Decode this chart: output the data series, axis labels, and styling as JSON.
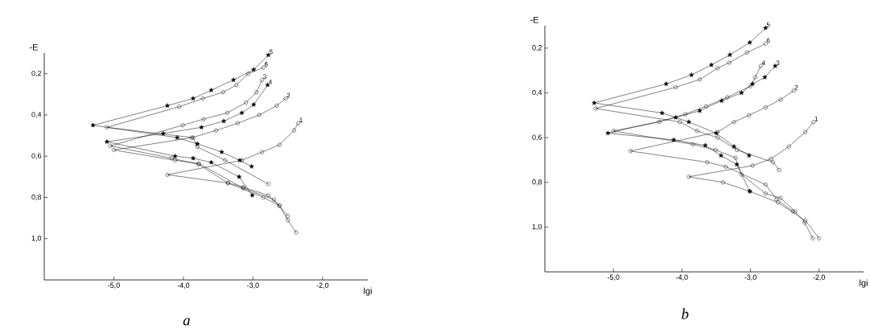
{
  "chart_data": [
    {
      "type": "line",
      "xlabel": "lgi",
      "ylabel": "-E",
      "annotations": [
        "a"
      ],
      "xlim": [
        -6.0,
        -1.35
      ],
      "ylim": [
        1.2,
        0.1
      ],
      "xticks": [
        {
          "value": -5,
          "label": "-5,0"
        },
        {
          "value": -4,
          "label": "-4,0"
        },
        {
          "value": -3,
          "label": "-3,0"
        },
        {
          "value": -2,
          "label": "-2,0"
        }
      ],
      "yticks": [
        {
          "value": 0.2,
          "label": "0,2"
        },
        {
          "value": 0.4,
          "label": "0,4"
        },
        {
          "value": 0.6,
          "label": "0,6"
        },
        {
          "value": 0.8,
          "label": "0,8"
        },
        {
          "value": 1.0,
          "label": "1,0"
        }
      ],
      "series": [
        {
          "name": "1",
          "color": "#000000",
          "marker": "circle",
          "x": [
            -2.35,
            -2.41,
            -2.62,
            -2.87,
            -3.16,
            -4.23,
            -3.36,
            -3.14,
            -2.78,
            -2.62
          ],
          "values": [
            0.44,
            0.475,
            0.545,
            0.58,
            0.62,
            0.69,
            0.73,
            0.75,
            0.79,
            0.84
          ]
        },
        {
          "name": "2",
          "color": "#000000",
          "marker": "circle",
          "x": [
            -2.53,
            -2.66,
            -2.91,
            -3.22,
            -3.53,
            -3.88,
            -5.0,
            -4.12,
            -3.78,
            -3.14,
            -2.7,
            -2.5
          ],
          "values": [
            0.32,
            0.355,
            0.4,
            0.44,
            0.475,
            0.51,
            0.57,
            0.62,
            0.635,
            0.755,
            0.81,
            0.89
          ]
        },
        {
          "name": "3",
          "color": "#000000",
          "marker": "circle",
          "x": [
            -2.87,
            -2.95,
            -3.1,
            -3.37,
            -3.71,
            -4.01,
            -5.05,
            -4.17,
            -3.78,
            -3.36,
            -2.85,
            -2.62,
            -2.5,
            -2.38
          ],
          "values": [
            0.23,
            0.29,
            0.34,
            0.39,
            0.42,
            0.45,
            0.55,
            0.61,
            0.64,
            0.73,
            0.8,
            0.84,
            0.91,
            0.97
          ]
        },
        {
          "name": "4",
          "color": "#000000",
          "marker": "star",
          "x": [
            -2.79,
            -2.99,
            -3.16,
            -3.42,
            -3.74,
            -4.29,
            -5.1,
            -4.12,
            -3.86,
            -3.6,
            -3.2,
            -3.01
          ],
          "values": [
            0.255,
            0.35,
            0.39,
            0.43,
            0.46,
            0.49,
            0.53,
            0.6,
            0.61,
            0.63,
            0.7,
            0.79
          ]
        },
        {
          "name": "5",
          "color": "#000000",
          "marker": "star",
          "x": [
            -2.78,
            -2.99,
            -3.28,
            -3.6,
            -3.86,
            -4.23,
            -5.3,
            -4.09,
            -3.8,
            -3.45,
            -3.19,
            -3.02
          ],
          "values": [
            0.11,
            0.18,
            0.23,
            0.28,
            0.32,
            0.355,
            0.45,
            0.51,
            0.54,
            0.58,
            0.62,
            0.65
          ]
        },
        {
          "name": "6",
          "color": "#000000",
          "marker": "circle",
          "x": [
            -2.85,
            -3.07,
            -3.24,
            -3.43,
            -3.72,
            -4.06,
            -5.1,
            -3.86,
            -3.8,
            -3.4,
            -2.78
          ],
          "values": [
            0.17,
            0.2,
            0.255,
            0.29,
            0.32,
            0.36,
            0.46,
            0.51,
            0.555,
            0.62,
            0.735
          ]
        }
      ]
    },
    {
      "type": "line",
      "xlabel": "lgi",
      "ylabel": "-E",
      "annotations": [
        "b"
      ],
      "xlim": [
        -6.0,
        -1.35
      ],
      "ylim": [
        1.2,
        0.1
      ],
      "xticks": [
        {
          "value": -5,
          "label": "-5,0"
        },
        {
          "value": -4,
          "label": "-4,0"
        },
        {
          "value": -3,
          "label": "-3,0"
        },
        {
          "value": -2,
          "label": "-2,0"
        }
      ],
      "yticks": [
        {
          "value": 0.2,
          "label": "0,2"
        },
        {
          "value": 0.4,
          "label": "0,4"
        },
        {
          "value": 0.6,
          "label": "0,6"
        },
        {
          "value": 0.8,
          "label": "0,8"
        },
        {
          "value": 1.0,
          "label": "1,0"
        }
      ],
      "series": [
        {
          "name": "1",
          "color": "#000000",
          "marker": "circle",
          "x": [
            -2.08,
            -2.2,
            -2.44,
            -2.7,
            -2.97,
            -3.9,
            -3.4,
            -3.01,
            -2.6,
            -2.2,
            -2.0
          ],
          "values": [
            0.53,
            0.575,
            0.64,
            0.695,
            0.725,
            0.775,
            0.8,
            0.84,
            0.89,
            0.97,
            1.05
          ]
        },
        {
          "name": "2",
          "color": "#000000",
          "marker": "circle",
          "x": [
            -2.37,
            -2.56,
            -2.78,
            -3.02,
            -3.24,
            -3.48,
            -4.75,
            -3.63,
            -3.36,
            -2.78,
            -2.62,
            -2.38
          ],
          "values": [
            0.39,
            0.43,
            0.465,
            0.5,
            0.53,
            0.575,
            0.66,
            0.71,
            0.73,
            0.81,
            0.875,
            0.93
          ]
        },
        {
          "name": "3",
          "color": "#000000",
          "marker": "star",
          "x": [
            -2.64,
            -2.79,
            -2.97,
            -3.13,
            -3.42,
            -3.74,
            -4.09,
            -5.08,
            -4.12,
            -3.66,
            -3.43,
            -3.2,
            -3.01
          ],
          "values": [
            0.28,
            0.33,
            0.36,
            0.4,
            0.435,
            0.48,
            0.51,
            0.58,
            0.61,
            0.635,
            0.68,
            0.72,
            0.84
          ]
        },
        {
          "name": "4",
          "color": "#000000",
          "marker": "circle",
          "x": [
            -2.85,
            -2.93,
            -3.0,
            -3.34,
            -3.65,
            -3.95,
            -4.33,
            -5.0,
            -3.84,
            -3.51,
            -3.22,
            -3.13,
            -2.78,
            -2.56,
            -2.35,
            -2.21,
            -2.09
          ],
          "values": [
            0.28,
            0.33,
            0.37,
            0.42,
            0.46,
            0.495,
            0.53,
            0.57,
            0.63,
            0.655,
            0.69,
            0.765,
            0.85,
            0.87,
            0.93,
            0.98,
            1.05
          ]
        },
        {
          "name": "5",
          "color": "#000000",
          "marker": "star",
          "x": [
            -2.78,
            -3.01,
            -3.3,
            -3.57,
            -3.86,
            -4.23,
            -5.28,
            -4.29,
            -3.9,
            -3.5,
            -3.24,
            -3.02
          ],
          "values": [
            0.11,
            0.175,
            0.23,
            0.275,
            0.32,
            0.36,
            0.445,
            0.49,
            0.53,
            0.58,
            0.64,
            0.68
          ]
        },
        {
          "name": "6",
          "color": "#000000",
          "marker": "circle",
          "x": [
            -2.78,
            -3.05,
            -3.31,
            -3.48,
            -3.74,
            -4.09,
            -5.26,
            -4.03,
            -3.78,
            -3.48,
            -3.2,
            -2.67,
            -2.58
          ],
          "values": [
            0.18,
            0.22,
            0.265,
            0.29,
            0.34,
            0.375,
            0.47,
            0.53,
            0.57,
            0.6,
            0.655,
            0.71,
            0.745
          ]
        }
      ]
    }
  ]
}
